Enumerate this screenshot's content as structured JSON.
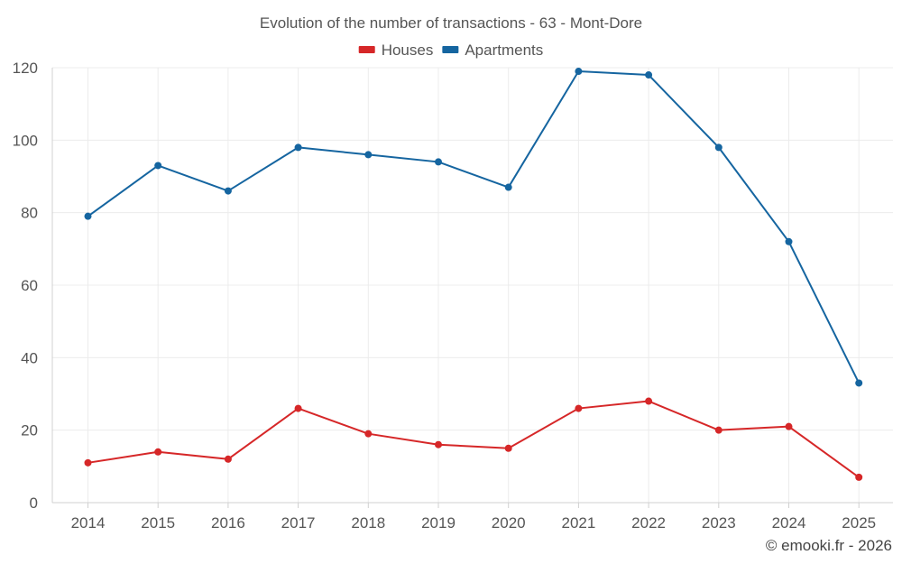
{
  "chart_data": {
    "type": "line",
    "title": "Evolution of the number of transactions - 63 - Mont-Dore",
    "xlabel": "",
    "ylabel": "",
    "categories": [
      "2014",
      "2015",
      "2016",
      "2017",
      "2018",
      "2019",
      "2020",
      "2021",
      "2022",
      "2023",
      "2024",
      "2025"
    ],
    "ylim": [
      0,
      120
    ],
    "yticks": [
      0,
      20,
      40,
      60,
      80,
      100,
      120
    ],
    "grid": true,
    "legend_position": "top-center",
    "series": [
      {
        "name": "Houses",
        "color": "#d62728",
        "values": [
          11,
          14,
          12,
          26,
          19,
          16,
          15,
          26,
          28,
          20,
          21,
          7
        ]
      },
      {
        "name": "Apartments",
        "color": "#1565a0",
        "values": [
          79,
          93,
          86,
          98,
          96,
          94,
          87,
          119,
          118,
          98,
          72,
          33
        ]
      }
    ],
    "credit": "© emooki.fr - 2026"
  }
}
